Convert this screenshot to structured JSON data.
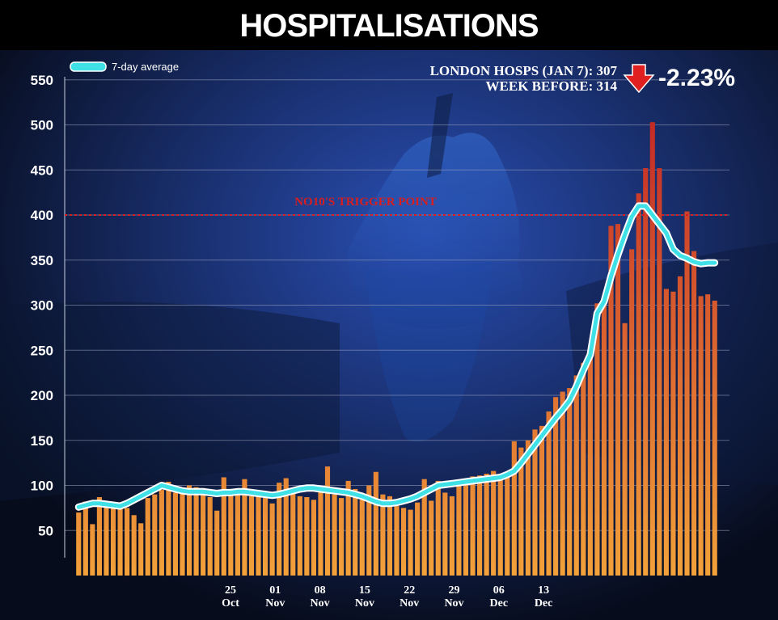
{
  "header": {
    "title": "HOSPITALISATIONS"
  },
  "stats": {
    "line1": "LONDON HOSPS (JAN 7): 307",
    "line2": "WEEK BEFORE: 314",
    "change": "-2.23%",
    "change_icon": "down-arrow-icon",
    "change_color": "#e02020"
  },
  "colors": {
    "bar_top": "#c42a26",
    "bar_bottom": "#f2a13a",
    "line": "#3fe0e6",
    "grid": "#9aa3c0",
    "trigger": "#d81e1e",
    "title_bg": "#000000"
  },
  "chart_data": {
    "type": "bar",
    "ylim": [
      0,
      550
    ],
    "yticks": [
      50,
      100,
      150,
      200,
      250,
      300,
      350,
      400,
      450,
      500,
      550
    ],
    "grid": true,
    "legend": {
      "placement": "top-left",
      "line_label": "7-day average"
    },
    "trigger_line": {
      "value": 400,
      "label": "NO10'S TRIGGER POINT"
    },
    "x_tick_labels": [
      {
        "day": "25",
        "month": "Oct"
      },
      {
        "day": "01",
        "month": "Nov"
      },
      {
        "day": "08",
        "month": "Nov"
      },
      {
        "day": "15",
        "month": "Nov"
      },
      {
        "day": "22",
        "month": "Nov"
      },
      {
        "day": "29",
        "month": "Nov"
      },
      {
        "day": "06",
        "month": "Dec"
      },
      {
        "day": "13",
        "month": "Dec"
      }
    ],
    "bar_values": [
      70,
      82,
      57,
      87,
      80,
      80,
      76,
      75,
      67,
      58,
      86,
      90,
      95,
      104,
      92,
      94,
      100,
      98,
      97,
      87,
      72,
      109,
      90,
      93,
      107,
      88,
      92,
      86,
      80,
      103,
      108,
      96,
      88,
      87,
      84,
      96,
      121,
      90,
      86,
      105,
      96,
      84,
      100,
      115,
      90,
      88,
      77,
      75,
      73,
      81,
      107,
      83,
      105,
      92,
      88,
      106,
      105,
      110,
      111,
      113,
      116,
      112,
      111,
      149,
      142,
      150,
      162,
      166,
      182,
      198,
      204,
      208,
      222,
      236,
      249,
      302,
      306,
      388,
      390,
      280,
      362,
      424,
      452,
      503,
      452,
      318,
      315,
      332,
      404,
      360,
      310,
      312,
      305
    ],
    "series": [
      {
        "name": "7-day average",
        "type": "line",
        "values": [
          76,
          78,
          80,
          80,
          79,
          78,
          77,
          80,
          84,
          88,
          92,
          96,
          100,
          98,
          96,
          94,
          93,
          93,
          93,
          92,
          91,
          92,
          92,
          93,
          93,
          92,
          91,
          90,
          89,
          90,
          92,
          94,
          96,
          97,
          97,
          96,
          95,
          94,
          93,
          92,
          90,
          88,
          85,
          82,
          80,
          80,
          81,
          83,
          85,
          88,
          92,
          96,
          100,
          101,
          102,
          103,
          104,
          105,
          106,
          107,
          108,
          109,
          112,
          116,
          125,
          135,
          145,
          155,
          165,
          175,
          184,
          194,
          210,
          228,
          245,
          291,
          304,
          332,
          356,
          378,
          398,
          410,
          410,
          400,
          390,
          380,
          362,
          355,
          352,
          348,
          346,
          347,
          347
        ]
      }
    ]
  }
}
